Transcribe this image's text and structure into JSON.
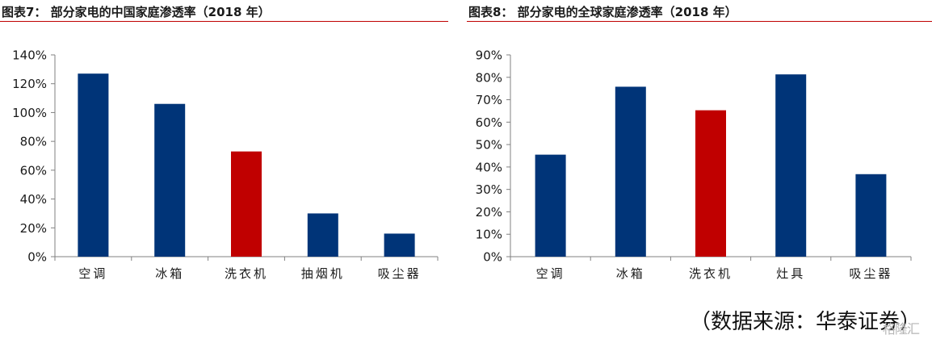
{
  "figures": [
    {
      "title": "图表7：  部分家电的中国家庭渗透率（2018 年）"
    },
    {
      "title": "图表8：  部分家电的全球家庭渗透率（2018 年）"
    }
  ],
  "source": "（数据来源：华泰证券）",
  "watermark": "格隆汇",
  "colors": {
    "primary_bar": "#003478",
    "highlight_bar": "#c00000",
    "rule": "#c00000",
    "axis": "#808080"
  },
  "chart_data": [
    {
      "type": "bar",
      "title": "图表7：  部分家电的中国家庭渗透率（2018 年）",
      "categories": [
        "空调",
        "冰箱",
        "洗衣机",
        "抽烟机",
        "吸尘器"
      ],
      "values": [
        127,
        106,
        73,
        30,
        16
      ],
      "value_unit": "%",
      "highlight_index": 2,
      "ylim": [
        0,
        140
      ],
      "yticks": [
        "0%",
        "20%",
        "40%",
        "60%",
        "80%",
        "100%",
        "120%",
        "140%"
      ],
      "xlabel": "",
      "ylabel": "",
      "grid": false,
      "legend": "none"
    },
    {
      "type": "bar",
      "title": "图表8：  部分家电的全球家庭渗透率（2018 年）",
      "categories": [
        "空调",
        "冰箱",
        "洗衣机",
        "灶具",
        "吸尘器"
      ],
      "values": [
        45.5,
        75.8,
        65.3,
        81.3,
        36.8
      ],
      "value_unit": "%",
      "highlight_index": 2,
      "ylim": [
        0,
        90
      ],
      "yticks": [
        "0%",
        "10%",
        "20%",
        "30%",
        "40%",
        "50%",
        "60%",
        "70%",
        "80%",
        "90%"
      ],
      "xlabel": "",
      "ylabel": "",
      "grid": false,
      "legend": "none"
    }
  ]
}
